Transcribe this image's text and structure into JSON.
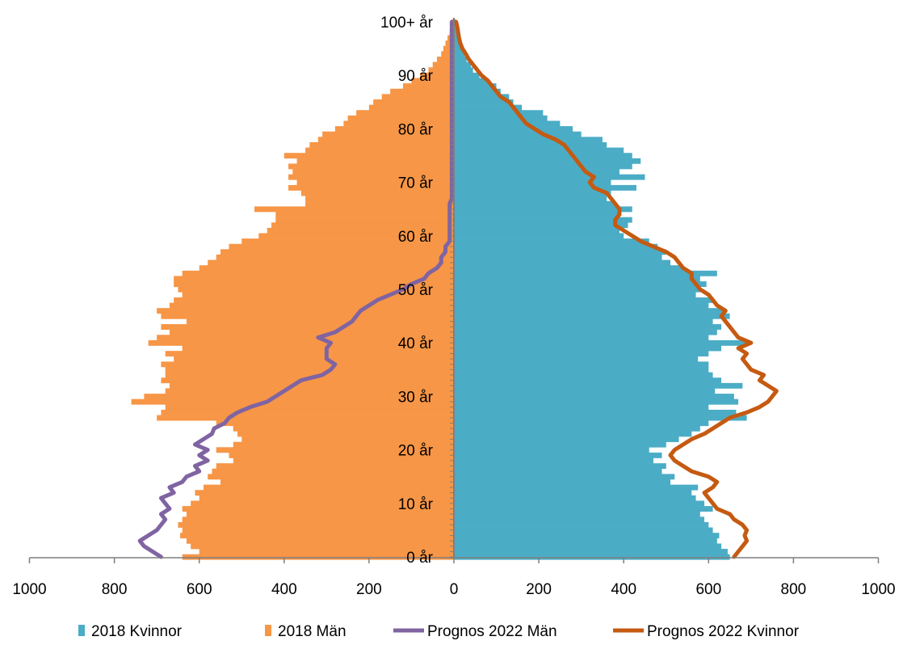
{
  "chart_data": {
    "type": "bar",
    "orientation": "horizontal-population-pyramid",
    "x_ticks": [
      "1000",
      "800",
      "600",
      "400",
      "200",
      "0",
      "200",
      "400",
      "600",
      "800",
      "1000"
    ],
    "xlim": [
      -1000,
      1000
    ],
    "y_ticks": [
      "0 år",
      "10 år",
      "20 år",
      "30 år",
      "40 år",
      "50 år",
      "60 år",
      "70 år",
      "80 år",
      "90 år",
      "100+ år"
    ],
    "ages": [
      0,
      1,
      2,
      3,
      4,
      5,
      6,
      7,
      8,
      9,
      10,
      11,
      12,
      13,
      14,
      15,
      16,
      17,
      18,
      19,
      20,
      21,
      22,
      23,
      24,
      25,
      26,
      27,
      28,
      29,
      30,
      31,
      32,
      33,
      34,
      35,
      36,
      37,
      38,
      39,
      40,
      41,
      42,
      43,
      44,
      45,
      46,
      47,
      48,
      49,
      50,
      51,
      52,
      53,
      54,
      55,
      56,
      57,
      58,
      59,
      60,
      61,
      62,
      63,
      64,
      65,
      66,
      67,
      68,
      69,
      70,
      71,
      72,
      73,
      74,
      75,
      76,
      77,
      78,
      79,
      80,
      81,
      82,
      83,
      84,
      85,
      86,
      87,
      88,
      89,
      90,
      91,
      92,
      93,
      94,
      95,
      96,
      97,
      98,
      99,
      100
    ],
    "series": [
      {
        "name": "2018 Kvinnor",
        "color": "#4BACC6",
        "kind": "bar",
        "values": [
          650,
          645,
          630,
          620,
          625,
          610,
          600,
          590,
          580,
          610,
          590,
          570,
          560,
          575,
          510,
          520,
          490,
          500,
          470,
          490,
          460,
          500,
          530,
          560,
          580,
          600,
          690,
          665,
          600,
          670,
          660,
          615,
          680,
          630,
          610,
          600,
          600,
          575,
          600,
          630,
          690,
          600,
          620,
          630,
          610,
          650,
          640,
          600,
          610,
          570,
          580,
          595,
          580,
          620,
          540,
          510,
          490,
          500,
          480,
          460,
          400,
          390,
          410,
          420,
          390,
          420,
          380,
          360,
          370,
          430,
          370,
          450,
          390,
          420,
          440,
          420,
          400,
          360,
          350,
          300,
          280,
          250,
          220,
          210,
          160,
          140,
          130,
          110,
          100,
          80,
          60,
          45,
          40,
          30,
          25,
          20,
          15,
          10,
          8,
          5,
          4
        ]
      },
      {
        "name": "2018 Män",
        "color": "#F79646",
        "kind": "bar",
        "values": [
          640,
          600,
          620,
          630,
          645,
          640,
          650,
          640,
          630,
          640,
          620,
          600,
          610,
          590,
          550,
          580,
          570,
          560,
          520,
          530,
          560,
          520,
          500,
          510,
          520,
          560,
          700,
          690,
          680,
          760,
          730,
          680,
          670,
          690,
          680,
          680,
          690,
          660,
          680,
          640,
          720,
          700,
          670,
          690,
          630,
          690,
          700,
          670,
          660,
          640,
          650,
          660,
          660,
          640,
          600,
          580,
          560,
          550,
          530,
          500,
          460,
          440,
          430,
          420,
          420,
          470,
          350,
          350,
          360,
          390,
          370,
          390,
          380,
          390,
          370,
          400,
          350,
          340,
          320,
          310,
          280,
          260,
          250,
          230,
          200,
          190,
          170,
          150,
          120,
          100,
          80,
          60,
          50,
          40,
          30,
          25,
          20,
          15,
          10,
          8,
          5
        ]
      },
      {
        "name": "Prognos 2022 Män",
        "color": "#8064A2",
        "kind": "line",
        "values": [
          690,
          710,
          730,
          740,
          720,
          700,
          690,
          680,
          690,
          670,
          680,
          690,
          660,
          670,
          640,
          630,
          600,
          610,
          580,
          600,
          580,
          610,
          590,
          570,
          565,
          540,
          530,
          510,
          480,
          440,
          420,
          400,
          380,
          360,
          310,
          290,
          280,
          300,
          300,
          300,
          290,
          320,
          280,
          260,
          240,
          230,
          220,
          200,
          180,
          150,
          120,
          100,
          70,
          60,
          40,
          30,
          30,
          20,
          20,
          10,
          10,
          10,
          10,
          10,
          10,
          10,
          10,
          5,
          5,
          5,
          5,
          5,
          5,
          5,
          5,
          5,
          5,
          5,
          5,
          5,
          5,
          5,
          5,
          5,
          5,
          5,
          5,
          5,
          5,
          5,
          5,
          5,
          5,
          5,
          5,
          5,
          5,
          5,
          5,
          5,
          5
        ]
      },
      {
        "name": "Prognos 2022 Kvinnor",
        "color": "#C55A11",
        "kind": "line",
        "values": [
          660,
          670,
          680,
          690,
          685,
          690,
          680,
          660,
          650,
          620,
          610,
          600,
          590,
          610,
          620,
          600,
          560,
          540,
          520,
          510,
          520,
          540,
          560,
          590,
          610,
          630,
          650,
          690,
          720,
          740,
          750,
          760,
          740,
          720,
          730,
          700,
          690,
          680,
          690,
          670,
          700,
          670,
          660,
          650,
          640,
          630,
          640,
          620,
          610,
          600,
          580,
          570,
          560,
          560,
          540,
          530,
          520,
          500,
          470,
          440,
          420,
          400,
          380,
          380,
          390,
          390,
          380,
          370,
          360,
          330,
          320,
          330,
          310,
          300,
          290,
          280,
          270,
          260,
          240,
          210,
          190,
          170,
          160,
          150,
          140,
          130,
          110,
          100,
          90,
          80,
          65,
          55,
          45,
          35,
          28,
          20,
          15,
          12,
          10,
          8,
          5
        ]
      }
    ]
  },
  "legend": {
    "items": [
      {
        "label": "2018 Kvinnor",
        "color": "#4BACC6",
        "kind": "box"
      },
      {
        "label": "2018 Män",
        "color": "#F79646",
        "kind": "box"
      },
      {
        "label": "Prognos 2022 Män",
        "color": "#8064A2",
        "kind": "line"
      },
      {
        "label": "Prognos 2022 Kvinnor",
        "color": "#C55A11",
        "kind": "line"
      }
    ]
  }
}
